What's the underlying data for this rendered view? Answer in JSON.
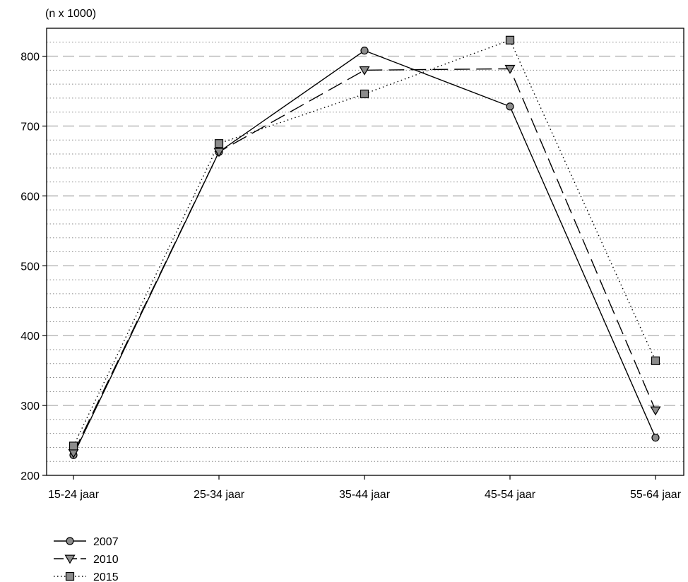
{
  "chart_data": {
    "type": "line",
    "unit_label": "(n x 1000)",
    "categories": [
      "15-24 jaar",
      "25-34 jaar",
      "35-44 jaar",
      "45-54 jaar",
      "55-64 jaar"
    ],
    "ylim": [
      200,
      840
    ],
    "yticks": [
      200,
      300,
      400,
      500,
      600,
      700,
      800
    ],
    "grid": {
      "major": "dashed",
      "minor": "dotted",
      "minor_step": 20
    },
    "legend_position": "bottom-left",
    "series": [
      {
        "name": "2007",
        "values": [
          229,
          663,
          808,
          728,
          254
        ],
        "line_style": "solid",
        "marker": "circle",
        "color": "#000000",
        "marker_fill": "#8c8c8c"
      },
      {
        "name": "2010",
        "values": [
          232,
          663,
          780,
          782,
          293
        ],
        "line_style": "dashed",
        "marker": "triangle-down",
        "color": "#000000",
        "marker_fill": "#8c8c8c"
      },
      {
        "name": "2015",
        "values": [
          242,
          675,
          746,
          823,
          364
        ],
        "line_style": "dotted",
        "marker": "square",
        "color": "#000000",
        "marker_fill": "#8c8c8c"
      }
    ]
  }
}
